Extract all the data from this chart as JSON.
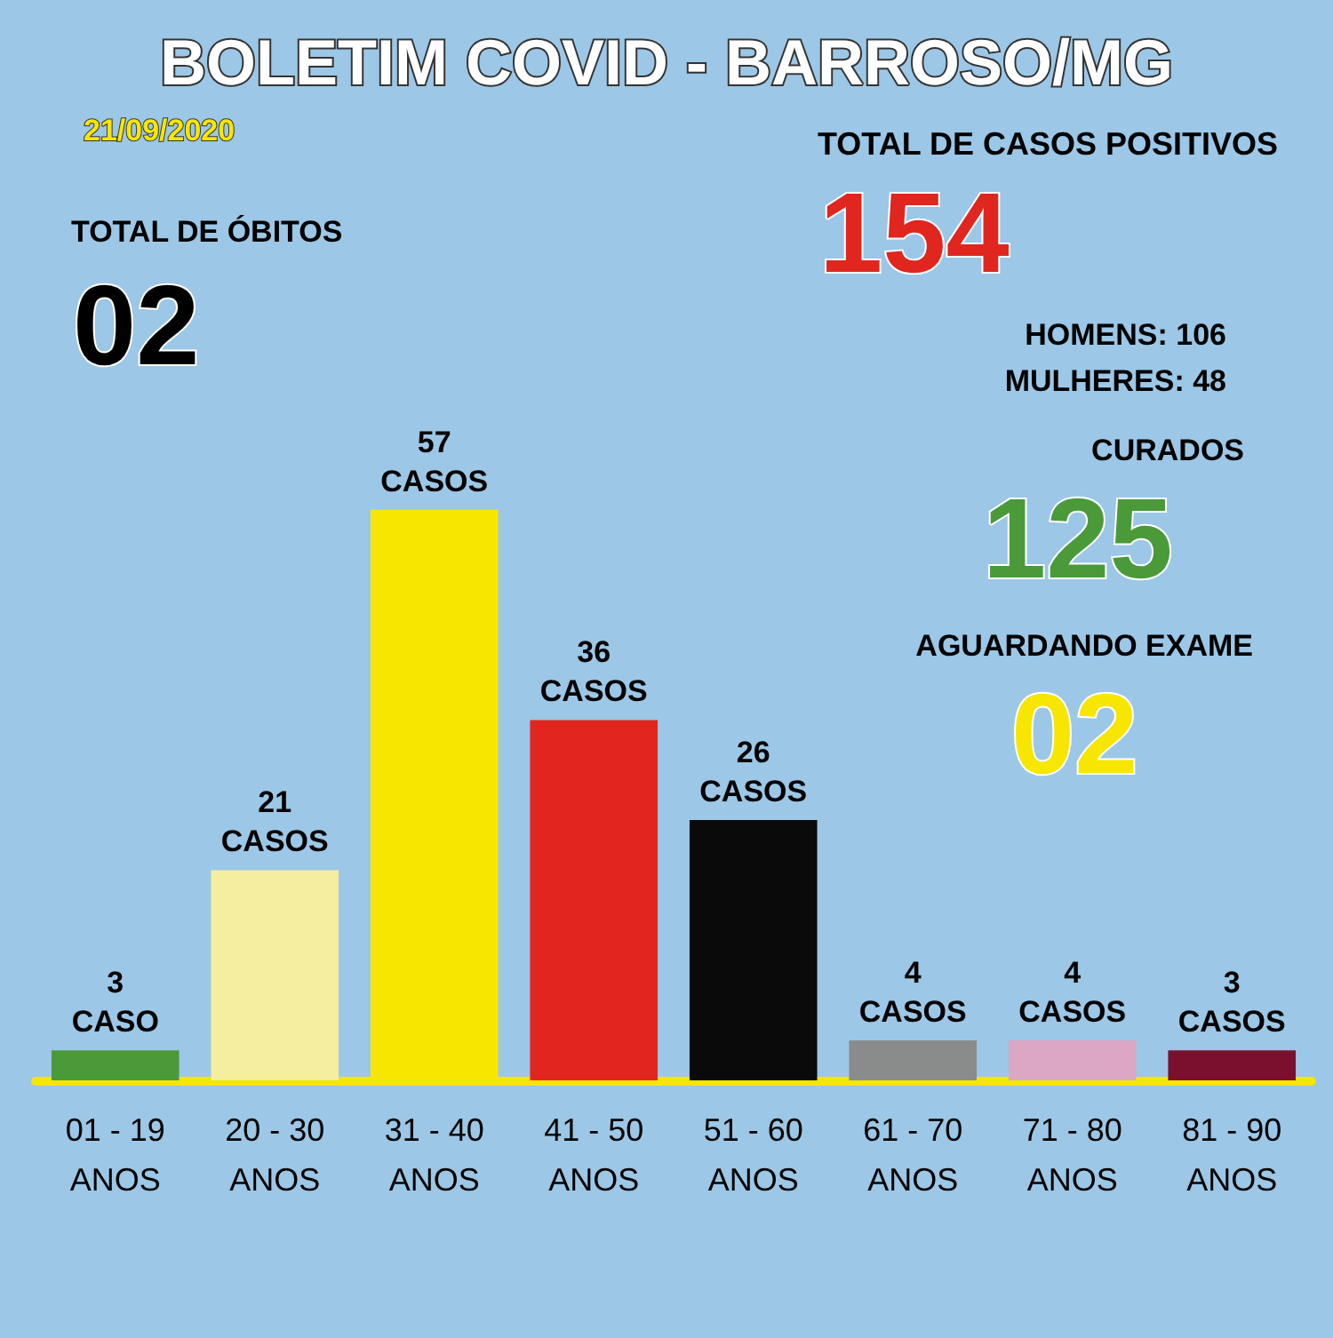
{
  "chart_data": {
    "type": "bar",
    "title": "BOLETIM COVID - BARROSO/MG",
    "subtitle": "21/09/2020",
    "categories": [
      "01 - 19 ANOS",
      "20 - 30 ANOS",
      "31 - 40 ANOS",
      "41 - 50 ANOS",
      "51 - 60 ANOS",
      "61 - 70 ANOS",
      "71 - 80 ANOS",
      "81 - 90 ANOS"
    ],
    "values": [
      3,
      21,
      57,
      36,
      26,
      4,
      4,
      3
    ],
    "colors": [
      "#4a9a3a",
      "#f5ee9e",
      "#f7e600",
      "#e0261f",
      "#0a0a0a",
      "#8a8c8c",
      "#dba7c4",
      "#7a0f2e"
    ],
    "value_labels": [
      "3 CASO",
      "21 CASOS",
      "57 CASOS",
      "36 CASOS",
      "26 CASOS",
      "4 CASOS",
      "4 CASOS",
      "3 CASOS"
    ],
    "annotations": [
      "TOTAL DE ÓBITOS",
      "02",
      "TOTAL DE CASOS POSITIVOS",
      "154",
      "HOMENS: 106",
      "MULHERES: 48",
      "CURADOS",
      "125",
      "AGUARDANDO EXAME",
      "02"
    ]
  }
}
